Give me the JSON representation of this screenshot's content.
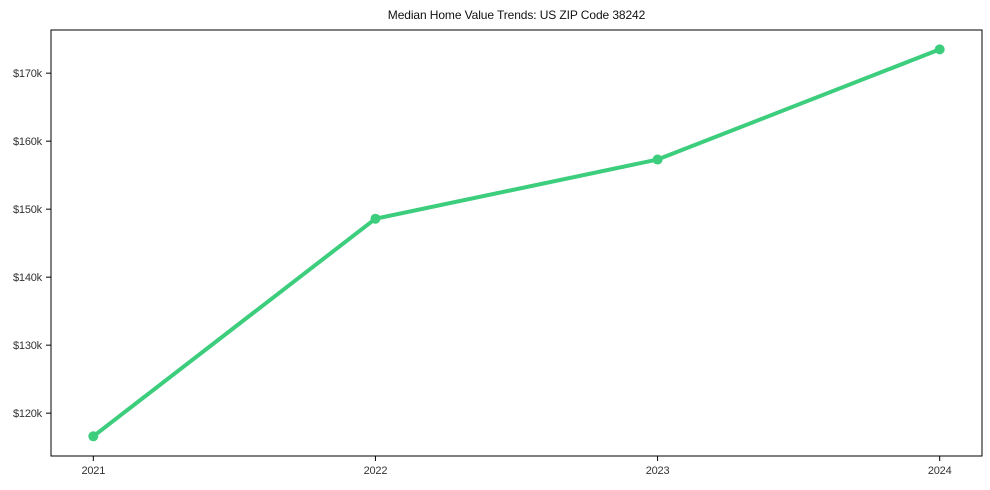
{
  "page": {
    "background": "#ffffff"
  },
  "chart_data": {
    "type": "line",
    "title": "Median Home Value Trends: US ZIP Code 38242",
    "x": [
      2021,
      2022,
      2023,
      2024
    ],
    "x_tick_labels": [
      "2021",
      "2022",
      "2023",
      "2024"
    ],
    "values": [
      116600,
      148600,
      157300,
      173500
    ],
    "y_ticks": [
      {
        "value": 120000,
        "label": "$120k"
      },
      {
        "value": 130000,
        "label": "$130k"
      },
      {
        "value": 140000,
        "label": "$140k"
      },
      {
        "value": 150000,
        "label": "$150k"
      },
      {
        "value": 160000,
        "label": "$160k"
      },
      {
        "value": 170000,
        "label": "$170k"
      }
    ],
    "xlim": [
      2020.85,
      2024.15
    ],
    "ylim": [
      113700,
      176350
    ],
    "grid": false,
    "legend": "none",
    "marker": "circle",
    "line_color": "#3ccd7d",
    "line_width": 4,
    "marker_radius": 5,
    "axis_color": "#000000",
    "tick_label_color": "#333333",
    "title_color": "#111111",
    "xlabel": "",
    "ylabel": ""
  }
}
